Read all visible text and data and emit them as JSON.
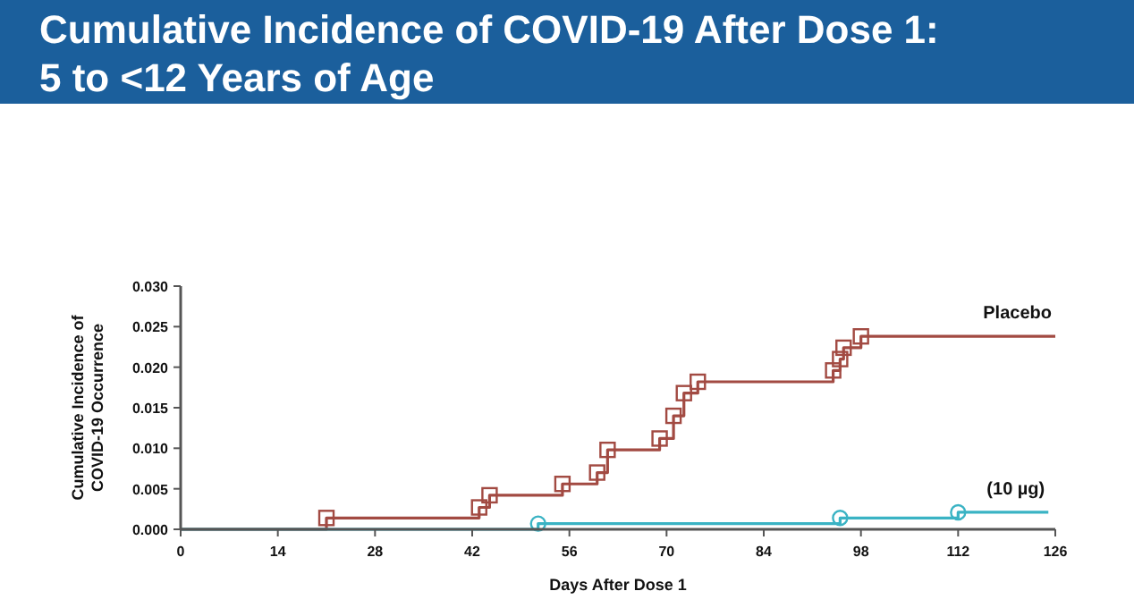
{
  "chart_data": {
    "type": "step",
    "title": "Cumulative Incidence of COVID-19 After Dose 1:\n5 to <12 Years of Age",
    "xlabel": "Days After Dose 1",
    "ylabel": "Cumulative Incidence of\nCOVID-19 Occurrence",
    "xlim": [
      0,
      126
    ],
    "xticks": [
      0,
      14,
      28,
      42,
      56,
      70,
      84,
      98,
      112,
      126
    ],
    "ylim": [
      0,
      0.03
    ],
    "yticks": [
      {
        "value": 0,
        "label": "0.000"
      },
      {
        "value": 0.005,
        "label": "0.005"
      },
      {
        "value": 0.01,
        "label": "0.010"
      },
      {
        "value": 0.015,
        "label": "0.015"
      },
      {
        "value": 0.02,
        "label": "0.020"
      },
      {
        "value": 0.025,
        "label": "0.025"
      },
      {
        "value": 0.03,
        "label": "0.030"
      }
    ],
    "grid": false,
    "series": [
      {
        "name": "Placebo",
        "color": "#a24a42",
        "marker": "square",
        "x": [
          0,
          21,
          43,
          44.5,
          55,
          60,
          61.5,
          69,
          71,
          72.5,
          74.5,
          94,
          95,
          95.5,
          98,
          126
        ],
        "values": [
          0,
          0.0014,
          0.0027,
          0.0042,
          0.0056,
          0.007,
          0.0098,
          0.0112,
          0.014,
          0.0168,
          0.0182,
          0.0196,
          0.021,
          0.0224,
          0.0238,
          0.0238
        ]
      },
      {
        "name": "(10 µg)",
        "color": "#3ab3c4",
        "marker": "circle",
        "x": [
          0,
          51.5,
          95,
          112,
          125
        ],
        "values": [
          0,
          0.0007,
          0.0014,
          0.0021,
          0.0021
        ]
      }
    ]
  }
}
